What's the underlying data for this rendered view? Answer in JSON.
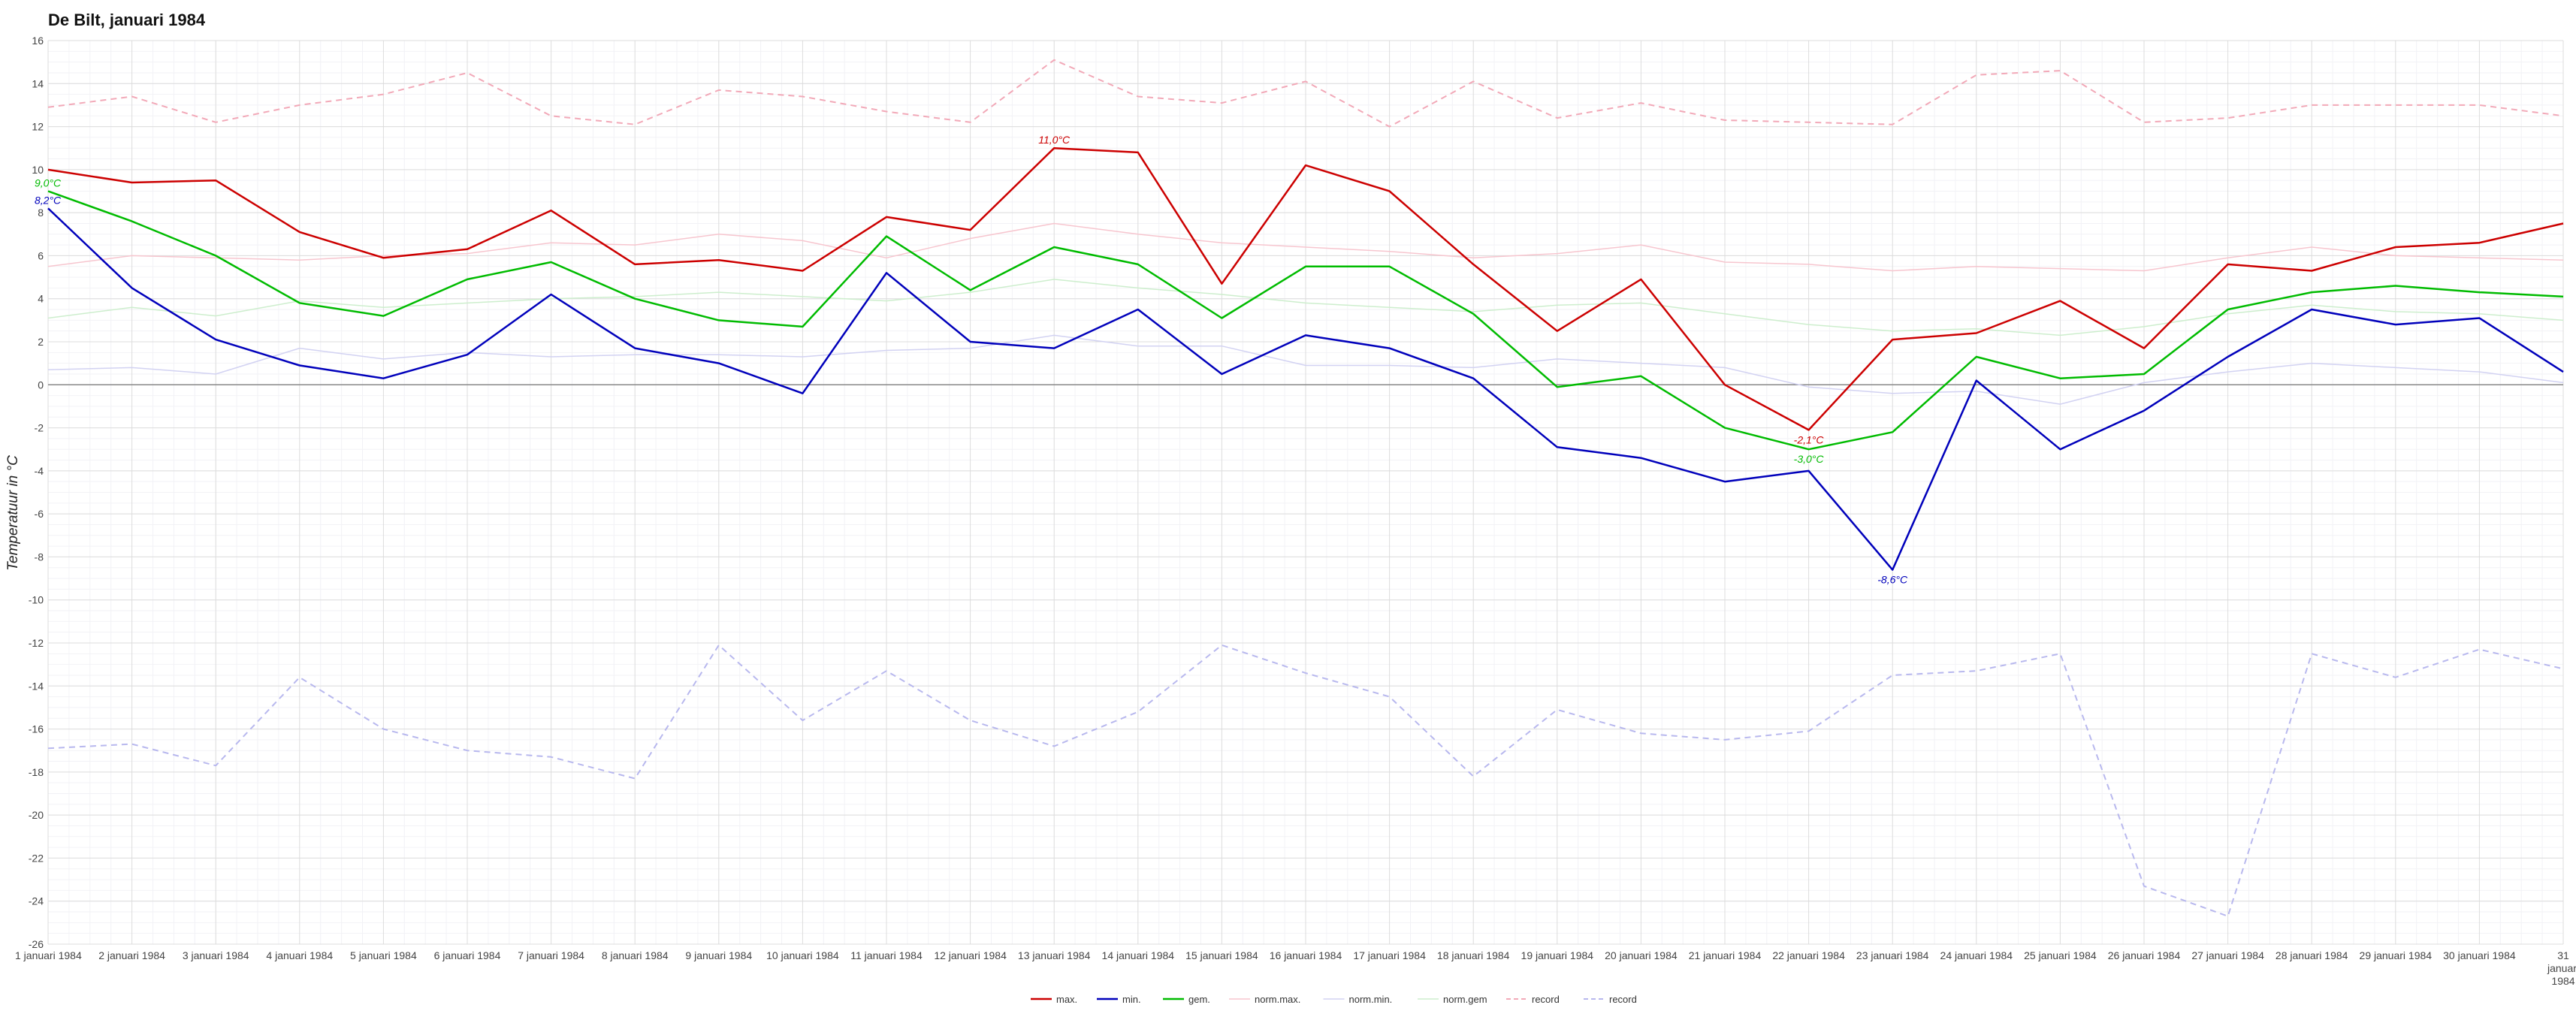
{
  "chart_data": {
    "type": "line",
    "title": "De Bilt, januari 1984",
    "ylabel": "Temperatuur in °C",
    "xlabel": "",
    "ylim": [
      -26,
      16
    ],
    "ytick_step": 2,
    "grid": true,
    "legend_position": "bottom-center",
    "categories": [
      "1 januari 1984",
      "2 januari 1984",
      "3 januari 1984",
      "4 januari 1984",
      "5 januari 1984",
      "6 januari 1984",
      "7 januari 1984",
      "8 januari 1984",
      "9 januari 1984",
      "10 januari 1984",
      "11 januari 1984",
      "12 januari 1984",
      "13 januari 1984",
      "14 januari 1984",
      "15 januari 1984",
      "16 januari 1984",
      "17 januari 1984",
      "18 januari 1984",
      "19 januari 1984",
      "20 januari 1984",
      "21 januari 1984",
      "22 januari 1984",
      "23 januari 1984",
      "24 januari 1984",
      "25 januari 1984",
      "26 januari 1984",
      "27 januari 1984",
      "28 januari 1984",
      "29 januari 1984",
      "30 januari 1984",
      "31 januari 1984"
    ],
    "series": [
      {
        "name": "max.",
        "color": "#cc0000",
        "style": "solid",
        "width": 2.5,
        "values": [
          10.0,
          9.4,
          9.5,
          7.1,
          5.9,
          6.3,
          8.1,
          5.6,
          5.8,
          5.3,
          7.8,
          7.2,
          11.0,
          10.8,
          4.7,
          10.2,
          9.0,
          5.6,
          2.5,
          4.9,
          0.0,
          -2.1,
          2.1,
          2.4,
          3.9,
          1.7,
          5.6,
          5.3,
          6.4,
          6.6,
          7.5
        ]
      },
      {
        "name": "min.",
        "color": "#0000bb",
        "style": "solid",
        "width": 2.5,
        "values": [
          8.2,
          4.5,
          2.1,
          0.9,
          0.3,
          1.4,
          4.2,
          1.7,
          1.0,
          -0.4,
          5.2,
          2.0,
          1.7,
          3.5,
          0.5,
          2.3,
          1.7,
          0.3,
          -2.9,
          -3.4,
          -4.5,
          -4.0,
          -8.6,
          0.2,
          -3.0,
          -1.2,
          1.3,
          3.5,
          2.8,
          3.1,
          0.6
        ]
      },
      {
        "name": "gem.",
        "color": "#00bb00",
        "style": "solid",
        "width": 2.5,
        "values": [
          9.0,
          7.6,
          6.0,
          3.8,
          3.2,
          4.9,
          5.7,
          4.0,
          3.0,
          2.7,
          6.9,
          4.4,
          6.4,
          5.6,
          3.1,
          5.5,
          5.5,
          3.3,
          -0.1,
          0.4,
          -2.0,
          -3.0,
          -2.2,
          1.3,
          0.3,
          0.5,
          3.5,
          4.3,
          4.6,
          4.3,
          4.1
        ]
      },
      {
        "name": "norm.max.",
        "color": "#f7c6cf",
        "style": "solid",
        "width": 1.5,
        "values": [
          5.5,
          6.0,
          5.9,
          5.8,
          6.0,
          6.1,
          6.6,
          6.5,
          7.0,
          6.7,
          5.9,
          6.8,
          7.5,
          7.0,
          6.6,
          6.4,
          6.2,
          5.9,
          6.1,
          6.5,
          5.7,
          5.6,
          5.3,
          5.5,
          5.4,
          5.3,
          5.9,
          6.4,
          6.0,
          5.9,
          5.8
        ]
      },
      {
        "name": "norm.min.",
        "color": "#d2d2f2",
        "style": "solid",
        "width": 1.5,
        "values": [
          0.7,
          0.8,
          0.5,
          1.7,
          1.2,
          1.5,
          1.3,
          1.4,
          1.4,
          1.3,
          1.6,
          1.7,
          2.3,
          1.8,
          1.8,
          0.9,
          0.9,
          0.8,
          1.2,
          1.0,
          0.8,
          -0.1,
          -0.4,
          -0.3,
          -0.9,
          0.1,
          0.6,
          1.0,
          0.8,
          0.6,
          0.1
        ]
      },
      {
        "name": "norm.gem",
        "color": "#cdeecd",
        "style": "solid",
        "width": 1.5,
        "values": [
          3.1,
          3.6,
          3.2,
          3.9,
          3.6,
          3.8,
          4.0,
          4.1,
          4.3,
          4.1,
          3.9,
          4.3,
          4.9,
          4.5,
          4.2,
          3.8,
          3.6,
          3.4,
          3.7,
          3.8,
          3.3,
          2.8,
          2.5,
          2.6,
          2.3,
          2.7,
          3.3,
          3.7,
          3.4,
          3.3,
          3.0
        ]
      },
      {
        "name": "record",
        "color": "#f2a9b8",
        "style": "dashed",
        "width": 2,
        "values": [
          12.9,
          13.4,
          12.2,
          13.0,
          13.5,
          14.5,
          12.5,
          12.1,
          13.7,
          13.4,
          12.7,
          12.2,
          15.1,
          13.4,
          13.1,
          14.1,
          12.0,
          14.1,
          12.4,
          13.1,
          12.3,
          12.2,
          12.1,
          14.4,
          14.6,
          12.2,
          12.4,
          13.0,
          13.0,
          13.0,
          12.5
        ]
      },
      {
        "name": "record",
        "color": "#b8b8ee",
        "style": "dashed",
        "width": 2,
        "values": [
          -16.9,
          -16.7,
          -17.7,
          -13.6,
          -16.0,
          -17.0,
          -17.3,
          -18.3,
          -12.1,
          -15.6,
          -13.3,
          -15.6,
          -16.8,
          -15.2,
          -12.1,
          -13.4,
          -14.5,
          -18.2,
          -15.1,
          -16.2,
          -16.5,
          -16.1,
          -13.5,
          -13.3,
          -12.5,
          -23.3,
          -24.7,
          -12.5,
          -13.6,
          -12.3,
          -13.2
        ]
      }
    ],
    "annotations": [
      {
        "text": "11,0°C",
        "series": "max.",
        "index": 12,
        "color": "#cc0000"
      },
      {
        "text": "-2,1°C",
        "series": "max.",
        "index": 21,
        "color": "#cc0000"
      },
      {
        "text": "9,0°C",
        "series": "gem.",
        "index": 0,
        "color": "#00bb00"
      },
      {
        "text": "-3,0°C",
        "series": "gem.",
        "index": 21,
        "color": "#00bb00"
      },
      {
        "text": "8,2°C",
        "series": "min.",
        "index": 0,
        "color": "#0000bb"
      },
      {
        "text": "-8,6°C",
        "series": "min.",
        "index": 22,
        "color": "#0000bb"
      }
    ]
  }
}
